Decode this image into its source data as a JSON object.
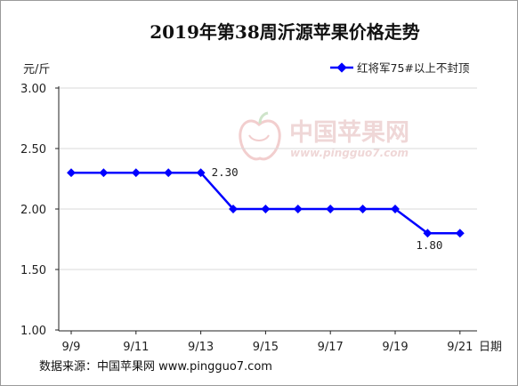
{
  "chart_data": {
    "type": "line",
    "title": "2019年第38周沂源苹果价格走势",
    "ylabel": "元/斤",
    "xlabel": "日期",
    "ylim": [
      1.0,
      3.0
    ],
    "yticks": [
      "1.00",
      "1.50",
      "2.00",
      "2.50",
      "3.00"
    ],
    "x": [
      "9/9",
      "9/10",
      "9/11",
      "9/12",
      "9/13",
      "9/14",
      "9/15",
      "9/16",
      "9/17",
      "9/18",
      "9/19",
      "9/20",
      "9/21"
    ],
    "xtick_labels": [
      "9/9",
      "9/11",
      "9/13",
      "9/15",
      "9/17",
      "9/19",
      "9/21"
    ],
    "series": [
      {
        "name": "红将军75#以上不封顶",
        "values": [
          2.3,
          2.3,
          2.3,
          2.3,
          2.3,
          2.0,
          2.0,
          2.0,
          2.0,
          2.0,
          2.0,
          1.8,
          1.8
        ],
        "color": "#0000ff"
      }
    ],
    "annotations": [
      {
        "label": "2.30",
        "index": 4
      },
      {
        "label": "1.80",
        "index": 11
      }
    ],
    "legend_position": "top-right",
    "grid": "horizontal"
  },
  "watermark": {
    "text": "中国苹果网",
    "url": "www.pingguo7.com"
  },
  "footer": {
    "source": "数据来源：中国苹果网 www.pingguo7.com"
  }
}
